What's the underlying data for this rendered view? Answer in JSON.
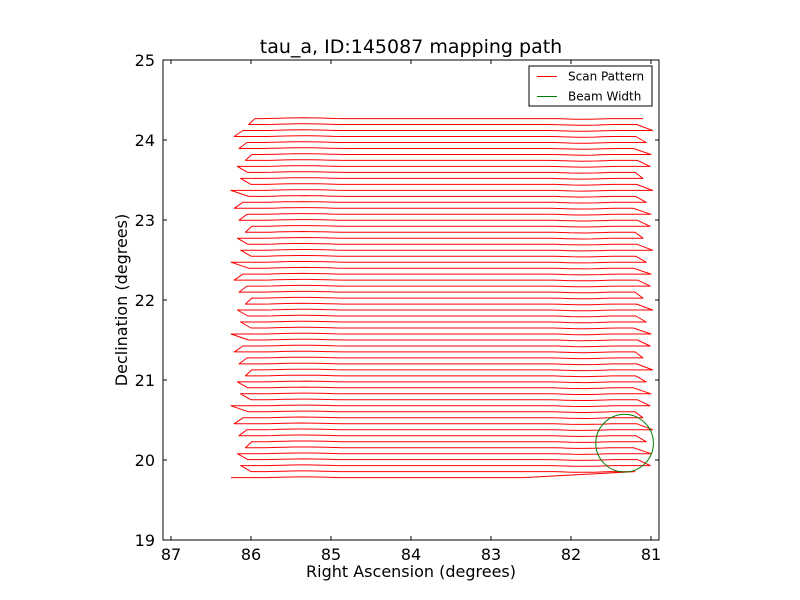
{
  "chart_data": {
    "type": "line",
    "title": "tau_a, ID:145087 mapping path",
    "xlabel": "Right Ascension (degrees)",
    "ylabel": "Declination (degrees)",
    "xlim": [
      87.1,
      80.9
    ],
    "ylim": [
      19,
      25
    ],
    "x_inverted": true,
    "x_ticks": [
      87,
      86,
      85,
      84,
      83,
      82,
      81
    ],
    "x_tick_labels": [
      "87",
      "86",
      "85",
      "84",
      "83",
      "82",
      "81"
    ],
    "y_ticks": [
      19,
      20,
      21,
      22,
      23,
      24,
      25
    ],
    "y_tick_labels": [
      "19",
      "20",
      "21",
      "22",
      "23",
      "24",
      "25"
    ],
    "grid": false,
    "legend_position": "top-right",
    "series": [
      {
        "name": "Scan Pattern",
        "color": "#ff0000",
        "kind": "raster-scan",
        "dec_start": 19.78,
        "dec_end": 24.27,
        "dec_step": 0.0748,
        "ra_west": 81.1,
        "ra_east": 85.95,
        "first_scan_ra_end": 82.6,
        "last_scan_ra_start": 85.95
      },
      {
        "name": "Beam Width",
        "color": "#008000",
        "kind": "circle",
        "center_ra": 81.33,
        "center_dec": 20.21,
        "radius_deg": 0.36
      }
    ]
  }
}
